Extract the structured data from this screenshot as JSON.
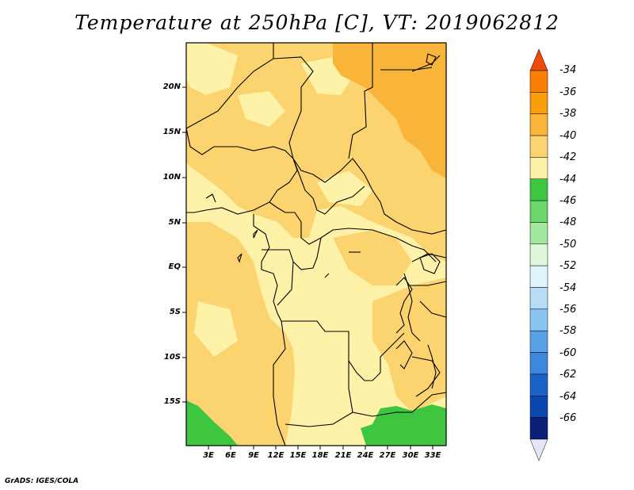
{
  "title": "Temperature at 250hPa [C], VT: 2019062812",
  "footer": "GrADS: IGES/COLA",
  "map": {
    "variable": "Temperature",
    "level": "250hPa",
    "units": "C",
    "valid_time": "2019062812",
    "lat_ticks": [
      "20N",
      "15N",
      "10N",
      "5N",
      "EQ",
      "5S",
      "10S",
      "15S"
    ],
    "lon_ticks": [
      "3E",
      "6E",
      "9E",
      "12E",
      "15E",
      "18E",
      "21E",
      "24E",
      "27E",
      "30E",
      "33E"
    ]
  },
  "colorbar": {
    "labels": [
      "-34",
      "-36",
      "-38",
      "-40",
      "-42",
      "-44",
      "-46",
      "-48",
      "-50",
      "-52",
      "-54",
      "-56",
      "-58",
      "-60",
      "-62",
      "-64",
      "-66"
    ],
    "colors": [
      "#f04a08",
      "#fb7e06",
      "#fb9e0c",
      "#f9b43a",
      "#fbd470",
      "#fdf2a8",
      "#3ec640",
      "#6ad66c",
      "#a2e8a0",
      "#dff8dc",
      "#e0f4fc",
      "#b8dcf6",
      "#8ac4f0",
      "#5aa2e8",
      "#3c88de",
      "#1a62c8",
      "#0a48b0",
      "#0b1e78",
      "#e4e6f6"
    ],
    "top_arrow_color": "#f04a08",
    "bottom_arrow_color": "#e4e6f6"
  }
}
